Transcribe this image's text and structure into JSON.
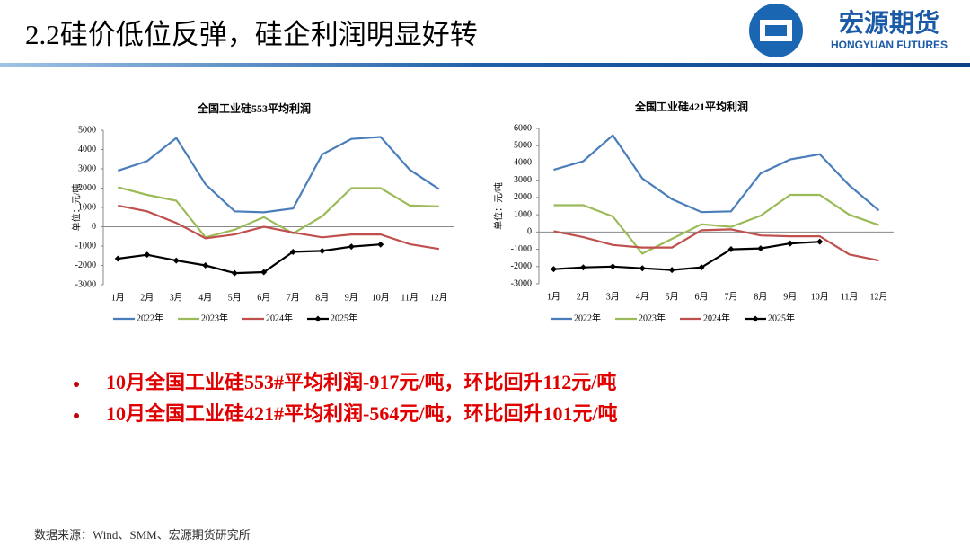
{
  "header": {
    "title": "2.2硅价低位反弹，硅企利润明显好转",
    "logo_cn": "宏源期货",
    "logo_en": "HONGYUAN FUTURES"
  },
  "chart_data": [
    {
      "type": "line",
      "title": "全国工业硅553平均利润",
      "ylabel": "单位：元/吨",
      "categories": [
        "1月",
        "2月",
        "3月",
        "4月",
        "5月",
        "6月",
        "7月",
        "8月",
        "9月",
        "10月",
        "11月",
        "12月"
      ],
      "ylim": [
        -3000,
        5000
      ],
      "yticks": [
        -3000,
        -2000,
        -1000,
        0,
        1000,
        2000,
        3000,
        4000,
        5000
      ],
      "series": [
        {
          "name": "2022年",
          "color": "#4a7ebb",
          "values": [
            2900,
            3400,
            4600,
            2200,
            800,
            750,
            950,
            3750,
            4550,
            4650,
            2950,
            1950
          ]
        },
        {
          "name": "2023年",
          "color": "#9bbb59",
          "values": [
            2050,
            1650,
            1350,
            -550,
            -150,
            500,
            -350,
            550,
            2000,
            2000,
            1100,
            1050
          ]
        },
        {
          "name": "2024年",
          "color": "#c0504d",
          "values": [
            1100,
            800,
            200,
            -600,
            -400,
            0,
            -300,
            -550,
            -400,
            -400,
            -900,
            -1150
          ]
        },
        {
          "name": "2025年",
          "color": "#000000",
          "marker": "diamond",
          "values": [
            -1650,
            -1450,
            -1750,
            -2000,
            -2400,
            -2350,
            -1300,
            -1250,
            -1029,
            -917,
            null,
            null
          ]
        }
      ]
    },
    {
      "type": "line",
      "title": "全国工业硅421平均利润",
      "ylabel": "单位：元/吨",
      "categories": [
        "1月",
        "2月",
        "3月",
        "4月",
        "5月",
        "6月",
        "7月",
        "8月",
        "9月",
        "10月",
        "11月",
        "12月"
      ],
      "ylim": [
        -3000,
        6000
      ],
      "yticks": [
        -3000,
        -2000,
        -1000,
        0,
        1000,
        2000,
        3000,
        4000,
        5000,
        6000
      ],
      "series": [
        {
          "name": "2022年",
          "color": "#4a7ebb",
          "values": [
            3600,
            4100,
            5600,
            3100,
            1900,
            1150,
            1200,
            3400,
            4200,
            4500,
            2700,
            1250
          ]
        },
        {
          "name": "2023年",
          "color": "#9bbb59",
          "values": [
            1550,
            1550,
            900,
            -1250,
            -400,
            450,
            300,
            950,
            2150,
            2150,
            1000,
            400
          ]
        },
        {
          "name": "2024年",
          "color": "#c0504d",
          "values": [
            50,
            -300,
            -750,
            -900,
            -900,
            100,
            150,
            -200,
            -250,
            -250,
            -1300,
            -1650
          ]
        },
        {
          "name": "2025年",
          "color": "#000000",
          "marker": "diamond",
          "values": [
            -2150,
            -2050,
            -2000,
            -2100,
            -2200,
            -2050,
            -1000,
            -950,
            -665,
            -564,
            null,
            null
          ]
        }
      ]
    }
  ],
  "bullets": [
    "10月全国工业硅553#平均利润-917元/吨，环比回升112元/吨",
    "10月全国工业硅421#平均利润-564元/吨，环比回升101元/吨"
  ],
  "source": "数据来源：Wind、SMM、宏源期货研究所"
}
